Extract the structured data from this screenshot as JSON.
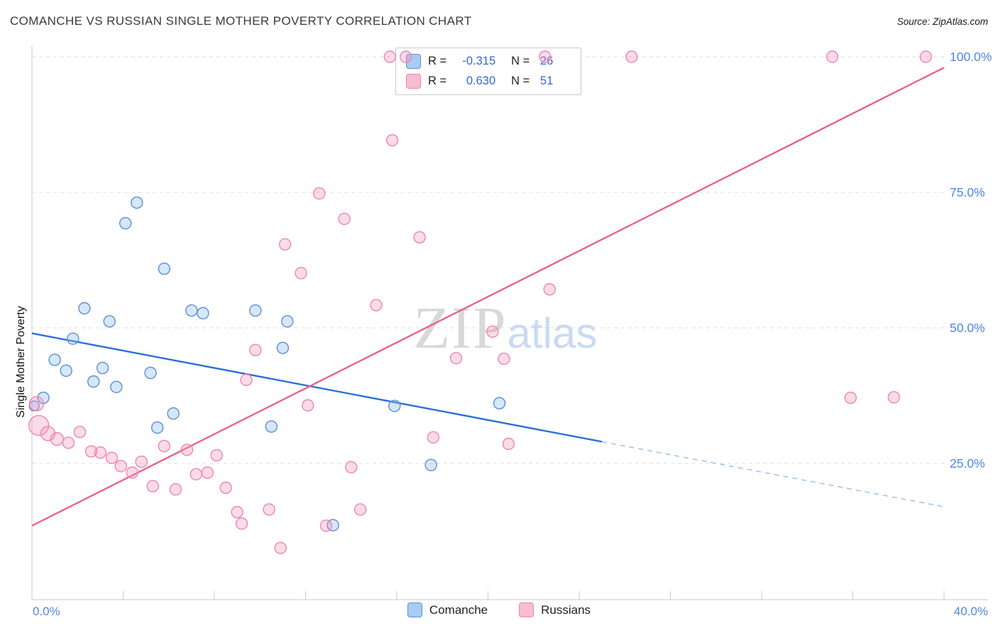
{
  "header": {
    "title": "COMANCHE VS RUSSIAN SINGLE MOTHER POVERTY CORRELATION CHART",
    "source": "Source: ZipAtlas.com"
  },
  "legend_box": {
    "rows": [
      {
        "series": "Comanche",
        "r_label": "R =",
        "r": "-0.315",
        "n_label": "N =",
        "n": "26"
      },
      {
        "series": "Russians",
        "r_label": "R =",
        "r": "0.630",
        "n_label": "N =",
        "n": "51"
      }
    ]
  },
  "bottom_legend": [
    {
      "label": "Comanche",
      "color": "#a8cbf2"
    },
    {
      "label": "Russians",
      "color": "#f9bcd3"
    }
  ],
  "watermark": {
    "part1": "ZIP",
    "part2": "atlas"
  },
  "chart_data": {
    "type": "scatter",
    "title": "COMANCHE VS RUSSIAN SINGLE MOTHER POVERTY CORRELATION CHART",
    "xlabel": "",
    "ylabel": "Single Mother Poverty",
    "xlim": [
      0,
      40
    ],
    "ylim": [
      0,
      102
    ],
    "x_tick_labels": [
      "0.0%",
      "40.0%"
    ],
    "y_tick_labels": [
      "25.0%",
      "50.0%",
      "75.0%",
      "100.0%"
    ],
    "y_gridlines": [
      25,
      50,
      75,
      100
    ],
    "grid": "horizontal-dashed",
    "legend_position": "bottom-center",
    "colors": {
      "axis": "#c8c8c8",
      "gridline": "#dcdcdc",
      "tick_label": "#4e86e8",
      "watermark_zip": "#d8d8d8",
      "watermark_atlas": "#c9daf3"
    },
    "series": [
      {
        "name": "Comanche",
        "r": -0.315,
        "n": 26,
        "fill": "#7fb3ef",
        "stroke": "#5b8ed6",
        "points": [
          [
            0.1,
            35.6,
            7
          ],
          [
            0.5,
            37.1,
            8
          ],
          [
            1.0,
            44.1,
            8
          ],
          [
            1.5,
            42.1,
            8
          ],
          [
            1.8,
            48.0,
            8
          ],
          [
            2.3,
            53.6,
            8
          ],
          [
            2.7,
            40.1,
            8
          ],
          [
            3.1,
            42.6,
            8
          ],
          [
            3.4,
            51.2,
            8
          ],
          [
            3.7,
            39.1,
            8
          ],
          [
            4.1,
            69.3,
            8
          ],
          [
            4.6,
            73.1,
            8
          ],
          [
            5.2,
            41.7,
            8
          ],
          [
            5.5,
            31.6,
            8
          ],
          [
            5.8,
            60.9,
            8
          ],
          [
            6.2,
            34.2,
            8
          ],
          [
            7.0,
            53.2,
            8
          ],
          [
            7.5,
            52.7,
            8
          ],
          [
            9.8,
            53.2,
            8
          ],
          [
            10.5,
            31.8,
            8
          ],
          [
            11.0,
            46.3,
            8
          ],
          [
            11.2,
            51.2,
            8
          ],
          [
            13.2,
            13.6,
            8
          ],
          [
            15.9,
            35.6,
            8
          ],
          [
            17.5,
            24.7,
            8
          ],
          [
            20.5,
            36.1,
            8
          ]
        ]
      },
      {
        "name": "Russians",
        "r": 0.63,
        "n": 51,
        "fill": "#f590b8",
        "stroke": "#ec86ae",
        "points": [
          [
            0.2,
            36.0,
            10
          ],
          [
            0.3,
            32.0,
            14
          ],
          [
            0.7,
            30.5,
            10
          ],
          [
            1.1,
            29.5,
            9
          ],
          [
            1.6,
            28.8,
            8
          ],
          [
            2.1,
            30.8,
            8
          ],
          [
            2.6,
            27.2,
            8
          ],
          [
            3.0,
            27.0,
            8
          ],
          [
            3.5,
            26.0,
            8
          ],
          [
            3.9,
            24.5,
            8
          ],
          [
            4.4,
            23.3,
            8
          ],
          [
            4.8,
            25.3,
            8
          ],
          [
            5.3,
            20.8,
            8
          ],
          [
            5.8,
            28.2,
            8
          ],
          [
            6.3,
            20.2,
            8
          ],
          [
            6.8,
            27.5,
            8
          ],
          [
            7.2,
            23.0,
            8
          ],
          [
            7.7,
            23.3,
            8
          ],
          [
            8.1,
            26.5,
            8
          ],
          [
            8.5,
            20.5,
            8
          ],
          [
            9.0,
            16.0,
            8
          ],
          [
            9.2,
            13.9,
            8
          ],
          [
            9.4,
            40.4,
            8
          ],
          [
            9.8,
            45.9,
            8
          ],
          [
            10.4,
            16.5,
            8
          ],
          [
            10.9,
            9.4,
            8
          ],
          [
            11.1,
            65.4,
            8
          ],
          [
            11.8,
            60.1,
            8
          ],
          [
            12.1,
            35.7,
            8
          ],
          [
            12.6,
            74.8,
            8
          ],
          [
            12.9,
            13.5,
            8
          ],
          [
            13.7,
            70.1,
            8
          ],
          [
            14.0,
            24.3,
            8
          ],
          [
            14.4,
            16.5,
            8
          ],
          [
            15.1,
            54.2,
            8
          ],
          [
            15.7,
            100,
            8
          ],
          [
            15.8,
            84.6,
            8
          ],
          [
            16.4,
            100,
            8
          ],
          [
            17.0,
            66.7,
            8
          ],
          [
            17.6,
            29.8,
            8
          ],
          [
            18.6,
            44.4,
            8
          ],
          [
            20.2,
            49.3,
            8
          ],
          [
            20.7,
            44.3,
            8
          ],
          [
            20.9,
            28.6,
            8
          ],
          [
            22.5,
            100,
            8
          ],
          [
            22.7,
            57.1,
            8
          ],
          [
            26.3,
            100,
            8
          ],
          [
            35.1,
            100,
            8
          ],
          [
            35.9,
            37.1,
            8
          ],
          [
            37.8,
            37.2,
            8
          ],
          [
            39.2,
            100,
            8
          ]
        ]
      }
    ],
    "trend_lines": [
      {
        "series": "Comanche",
        "color": "#2e6fd6",
        "dash_color": "#9cc2ee",
        "solid": [
          [
            0,
            49
          ],
          [
            25,
            29
          ]
        ],
        "dashed": [
          [
            25,
            29
          ],
          [
            40,
            17
          ]
        ]
      },
      {
        "series": "Russians",
        "color": "#e8638c",
        "solid": [
          [
            0,
            13.5
          ],
          [
            40,
            98
          ]
        ]
      }
    ]
  }
}
